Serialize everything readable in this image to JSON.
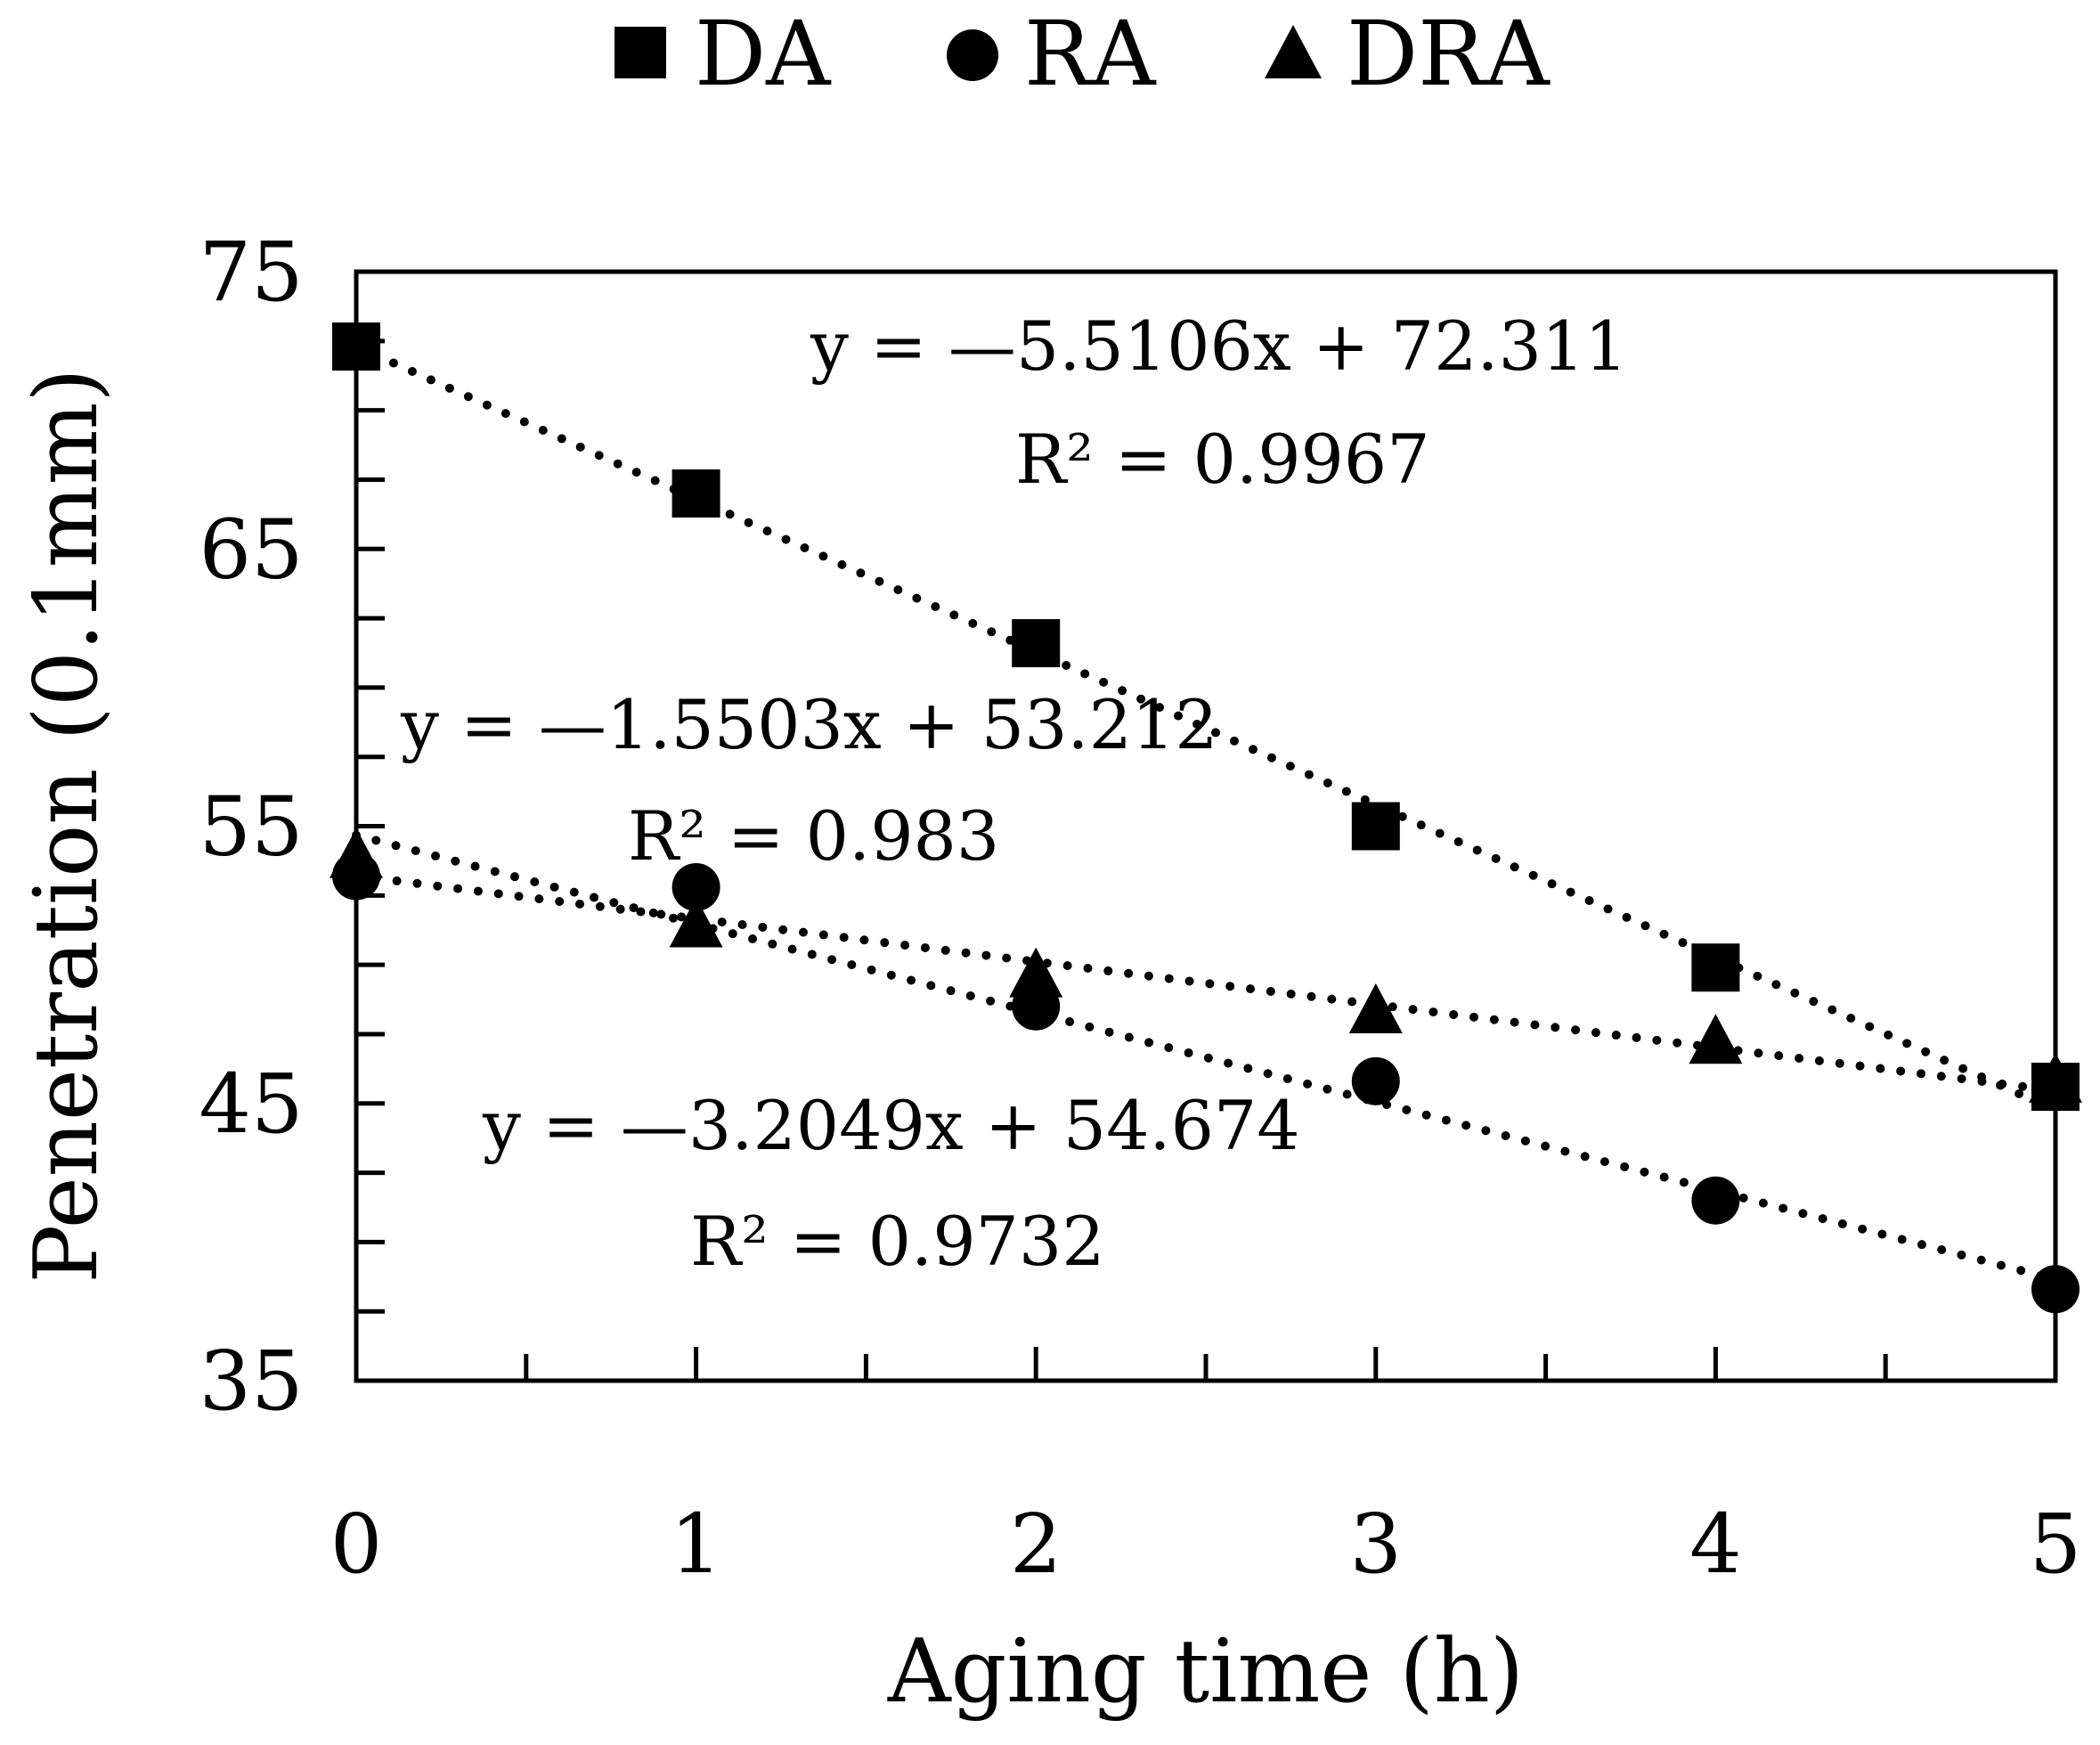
{
  "chart_data": {
    "type": "scatter",
    "title": "",
    "xlabel": "Aging time (h)",
    "ylabel": "Penetration (0.1mm)",
    "xlim": [
      0,
      5
    ],
    "ylim": [
      35,
      75
    ],
    "x_ticks": [
      "0",
      "1",
      "2",
      "3",
      "4",
      "5"
    ],
    "y_ticks": [
      "35",
      "45",
      "55",
      "65",
      "75"
    ],
    "x_minor_step": 0.5,
    "y_minor_step": 2.5,
    "grid": false,
    "legend_position": "top",
    "x": [
      0,
      1,
      2,
      3,
      4,
      5
    ],
    "series": [
      {
        "name": "DA",
        "marker": "square",
        "values": [
          72.3,
          67.0,
          61.6,
          55.0,
          49.9,
          45.6
        ],
        "trend": {
          "slope": -5.5106,
          "intercept": 72.311
        }
      },
      {
        "name": "RA",
        "marker": "circle",
        "values": [
          53.2,
          52.8,
          48.5,
          45.8,
          41.5,
          38.3
        ],
        "trend": {
          "slope": -3.2049,
          "intercept": 54.674
        }
      },
      {
        "name": "DRA",
        "marker": "triangle",
        "values": [
          53.9,
          51.4,
          49.6,
          48.3,
          47.2,
          45.8
        ],
        "trend": {
          "slope": -1.5503,
          "intercept": 53.212
        }
      }
    ],
    "annotations": [
      {
        "series": "DA",
        "equation": "y = —5.5106x + 72.311",
        "r2": "R² = 0.9967"
      },
      {
        "series": "DRA",
        "equation": "y = —1.5503x + 53.212",
        "r2": "R² = 0.983"
      },
      {
        "series": "RA",
        "equation": "y = —3.2049x + 54.674",
        "r2": "R² = 0.9732"
      }
    ],
    "marker_color": "#000000"
  }
}
